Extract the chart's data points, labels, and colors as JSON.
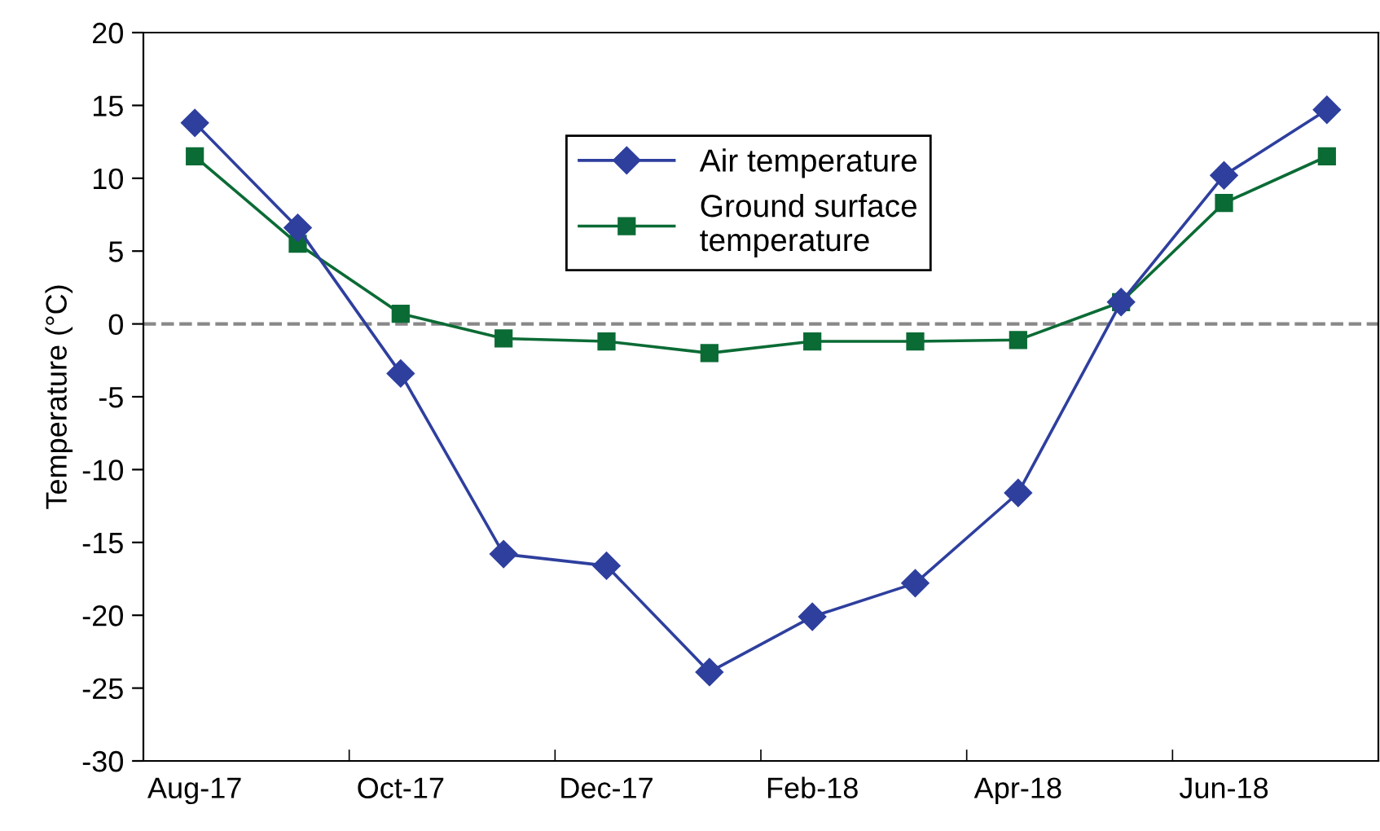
{
  "chart_data": {
    "type": "line",
    "ylabel": "Temperature (°C)",
    "categories": [
      "Aug-17",
      null,
      "Oct-17",
      null,
      "Dec-17",
      null,
      "Feb-18",
      null,
      "Apr-18",
      null,
      "Jun-18",
      null
    ],
    "series": [
      {
        "name": "Air temperature",
        "color": "#2e3f9e",
        "marker": "diamond",
        "values": [
          13.8,
          6.6,
          -3.4,
          -15.8,
          -16.6,
          -23.9,
          -20.1,
          -17.8,
          -11.6,
          1.5,
          10.2,
          14.7
        ]
      },
      {
        "name": "Ground surface\ntemperature",
        "color": "#0b6b35",
        "marker": "square",
        "values": [
          11.5,
          5.5,
          0.7,
          -1.0,
          -1.2,
          -2.0,
          -1.2,
          -1.2,
          -1.1,
          1.5,
          8.3,
          11.5
        ]
      }
    ],
    "ylim": [
      -30,
      20
    ],
    "yticks": [
      -30,
      -25,
      -20,
      -15,
      -10,
      -5,
      0,
      5,
      10,
      15,
      20
    ],
    "ref_lines": [
      {
        "axis": "y",
        "value": 0,
        "color": "#888888",
        "line_style": "dashed"
      }
    ],
    "grid": false,
    "legend": "top",
    "line_style": "solid"
  }
}
